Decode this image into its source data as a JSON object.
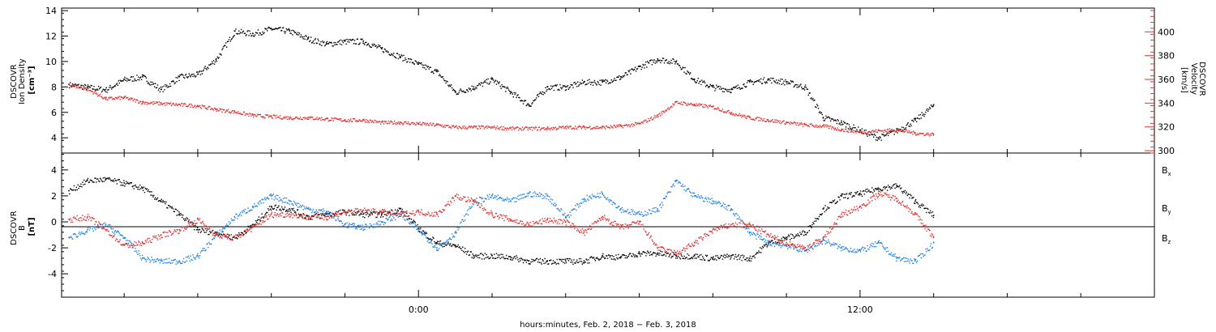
{
  "xlabel": "hours:minutes, Feb.  2, 2018 − Feb.  3, 2018",
  "chart_data": [
    {
      "type": "scatter",
      "panel": "plasma",
      "left_axis": {
        "label_lines": [
          "DSCOVR",
          "Ion Density",
          "[cm⁻³]"
        ],
        "ylim": [
          2.8,
          14.2
        ],
        "ticks": [
          4,
          6,
          8,
          10,
          12,
          14
        ],
        "color": "#000000"
      },
      "right_axis": {
        "label_lines": [
          "DSCOVR",
          "Velocity",
          "[km/s]"
        ],
        "ylim": [
          298,
          420
        ],
        "ticks": [
          300,
          320,
          340,
          360,
          380,
          400
        ],
        "color": "#e03030"
      },
      "x_hours": [
        -9.5,
        -9.0,
        -8.5,
        -8.0,
        -7.5,
        -7.0,
        -6.5,
        -6.0,
        -5.5,
        -5.0,
        -4.5,
        -4.0,
        -3.5,
        -3.0,
        -2.5,
        -2.0,
        -1.5,
        -1.0,
        -0.5,
        0.0,
        0.5,
        1.0,
        1.5,
        2.0,
        2.5,
        3.0,
        3.5,
        4.0,
        4.5,
        5.0,
        5.5,
        6.0,
        6.5,
        7.0,
        7.5,
        8.0,
        8.5,
        9.0,
        9.5,
        10.0,
        10.5,
        11.0,
        11.5,
        12.0,
        12.5,
        13.0,
        13.5,
        14.0
      ],
      "series": [
        {
          "name": "density",
          "axis": "left",
          "color": "#000000",
          "values": [
            8.2,
            8.0,
            7.8,
            8.6,
            8.8,
            7.8,
            8.8,
            9.0,
            10.2,
            12.4,
            12.2,
            12.6,
            12.4,
            11.8,
            11.4,
            11.6,
            11.6,
            11.0,
            10.4,
            9.8,
            9.2,
            7.6,
            8.0,
            8.6,
            7.6,
            6.6,
            8.0,
            8.0,
            8.4,
            8.4,
            8.8,
            9.6,
            10.2,
            10.0,
            8.6,
            8.0,
            7.8,
            8.4,
            8.6,
            8.4,
            8.0,
            5.6,
            5.2,
            4.6,
            4.0,
            4.6,
            5.4,
            6.6
          ]
        },
        {
          "name": "velocity",
          "axis": "right",
          "color": "#e03030",
          "values": [
            356,
            352,
            344,
            345,
            341,
            340,
            339,
            338,
            335,
            333,
            330,
            329,
            328,
            328,
            327,
            326,
            326,
            324,
            324,
            323,
            322,
            320,
            320,
            320,
            319,
            319,
            319,
            320,
            320,
            320,
            321,
            323,
            330,
            341,
            339,
            337,
            332,
            328,
            326,
            324,
            322,
            321,
            318,
            316,
            317,
            318,
            315,
            314
          ]
        }
      ]
    },
    {
      "type": "scatter",
      "panel": "magnetic-field",
      "left_axis": {
        "label_lines": [
          "DSCOVR",
          "B",
          "[nT]"
        ],
        "ylim": [
          -5.8,
          5.3
        ],
        "ticks": [
          -4,
          -2,
          0,
          2,
          4
        ],
        "color": "#000000"
      },
      "x_hours": [
        -9.5,
        -9.0,
        -8.5,
        -8.0,
        -7.5,
        -7.0,
        -6.5,
        -6.0,
        -5.5,
        -5.0,
        -4.5,
        -4.0,
        -3.5,
        -3.0,
        -2.5,
        -2.0,
        -1.5,
        -1.0,
        -0.5,
        0.0,
        0.5,
        1.0,
        1.5,
        2.0,
        2.5,
        3.0,
        3.5,
        4.0,
        4.5,
        5.0,
        5.5,
        6.0,
        6.5,
        7.0,
        7.5,
        8.0,
        8.5,
        9.0,
        9.5,
        10.0,
        10.5,
        11.0,
        11.5,
        12.0,
        12.5,
        13.0,
        13.5,
        14.0
      ],
      "series": [
        {
          "name": "Bx",
          "label": "B",
          "subscript": "x",
          "color": "#000000",
          "values": [
            2.4,
            3.2,
            3.3,
            3.0,
            2.6,
            1.6,
            0.6,
            -0.6,
            -0.8,
            -1.2,
            -0.2,
            1.2,
            1.0,
            0.4,
            0.6,
            0.8,
            0.6,
            0.6,
            1.0,
            -0.5,
            -1.6,
            -1.8,
            -2.6,
            -2.6,
            -2.7,
            -3.0,
            -3.0,
            -3.0,
            -3.0,
            -2.6,
            -2.7,
            -2.4,
            -2.4,
            -2.6,
            -2.6,
            -2.8,
            -2.6,
            -2.8,
            -1.6,
            -1.2,
            -0.8,
            1.0,
            2.0,
            2.2,
            2.6,
            2.8,
            1.6,
            0.5
          ]
        },
        {
          "name": "By",
          "label": "B",
          "subscript": "y",
          "color": "#2080e0",
          "values": [
            -1.2,
            -0.6,
            -0.2,
            -1.2,
            -2.8,
            -3.0,
            -3.0,
            -2.6,
            -1.0,
            0.4,
            1.2,
            2.0,
            1.6,
            1.0,
            0.8,
            -0.2,
            -0.4,
            0.0,
            0.6,
            -0.6,
            -2.0,
            -0.8,
            1.6,
            2.0,
            1.6,
            2.2,
            2.0,
            0.4,
            1.8,
            2.2,
            1.0,
            0.6,
            1.0,
            3.2,
            2.0,
            1.6,
            1.0,
            -0.8,
            -1.6,
            -1.8,
            -2.2,
            -1.4,
            -2.0,
            -2.2,
            -1.6,
            -2.8,
            -3.0,
            -1.6
          ]
        },
        {
          "name": "Bz",
          "label": "B",
          "subscript": "z",
          "color": "#e03030",
          "values": [
            0.2,
            0.4,
            -0.6,
            -1.8,
            -1.6,
            -1.0,
            -0.6,
            0.2,
            -1.0,
            -1.2,
            -0.4,
            0.6,
            0.6,
            0.4,
            0.4,
            0.8,
            0.9,
            0.8,
            0.6,
            0.8,
            0.6,
            2.0,
            1.6,
            0.6,
            0.2,
            -0.2,
            0.2,
            0.0,
            -0.8,
            0.4,
            -0.4,
            0.0,
            -2.0,
            -2.4,
            -1.6,
            -0.6,
            -0.2,
            -0.2,
            -1.0,
            -1.6,
            -2.0,
            -1.2,
            0.6,
            1.2,
            2.2,
            1.8,
            0.6,
            -1.2
          ]
        }
      ]
    }
  ],
  "x_axis": {
    "range_hours": [
      -9.7,
      20.0
    ],
    "major_ticks": [
      0,
      12
    ],
    "labels": [
      "0:00",
      "12:00"
    ]
  }
}
